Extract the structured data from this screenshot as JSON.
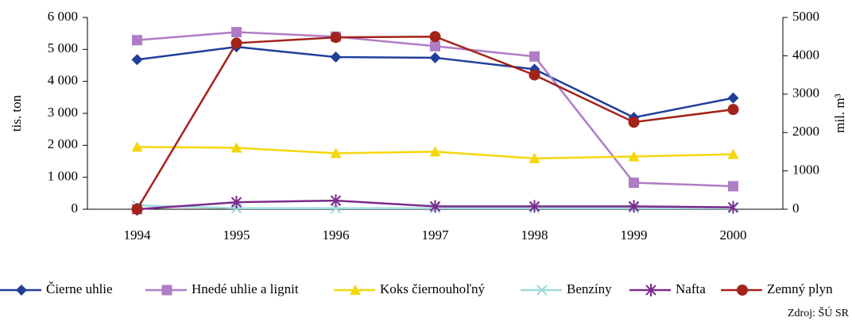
{
  "chart_data": {
    "type": "line",
    "categories": [
      "1994",
      "1995",
      "1996",
      "1997",
      "1998",
      "1999",
      "2000"
    ],
    "y_label": "tis. ton",
    "y2_label": "mil. m³",
    "source": "Zdroj: ŠÚ SR",
    "ylim": [
      0,
      6000
    ],
    "yticks": [
      0,
      {
        "value": 1000,
        "label": "1 000"
      },
      {
        "value": 2000,
        "label": "2 000"
      },
      {
        "value": 3000,
        "label": "3 000"
      },
      {
        "value": 4000,
        "label": "4 000"
      },
      {
        "value": 5000,
        "label": "5 000"
      },
      {
        "value": 6000,
        "label": "6 000"
      }
    ],
    "y2lim": [
      0,
      5000
    ],
    "y2ticks": [
      0,
      1000,
      2000,
      3000,
      4000,
      5000
    ],
    "series": [
      {
        "name": "Čierne uhlie",
        "color": "#1f3f99",
        "marker": "diamond",
        "values": [
          4680,
          5080,
          4760,
          4740,
          4380,
          2870,
          3480
        ]
      },
      {
        "name": "Hnedé uhlie a lignit",
        "color": "#b07cc6",
        "marker": "square",
        "values": [
          5290,
          5540,
          5400,
          5100,
          4780,
          830,
          720
        ]
      },
      {
        "name": "Koks čiernouhoľný",
        "color": "#f5d60a",
        "marker": "triangle",
        "values": [
          1950,
          1920,
          1750,
          1800,
          1590,
          1650,
          1720
        ]
      },
      {
        "name": "Benzíny",
        "color": "#9fd9dc",
        "marker": "x",
        "values": [
          120,
          30,
          30,
          30,
          30,
          30,
          30
        ]
      },
      {
        "name": "Nafta",
        "color": "#7d2a8c",
        "marker": "asterisk",
        "values": [
          0,
          220,
          270,
          90,
          90,
          90,
          60
        ]
      },
      {
        "name": "Zemný plyn",
        "color": "#a3221a",
        "marker": "circle",
        "axis": "y2",
        "values": [
          0,
          4330,
          4480,
          4500,
          3500,
          2270,
          2600
        ]
      }
    ]
  }
}
